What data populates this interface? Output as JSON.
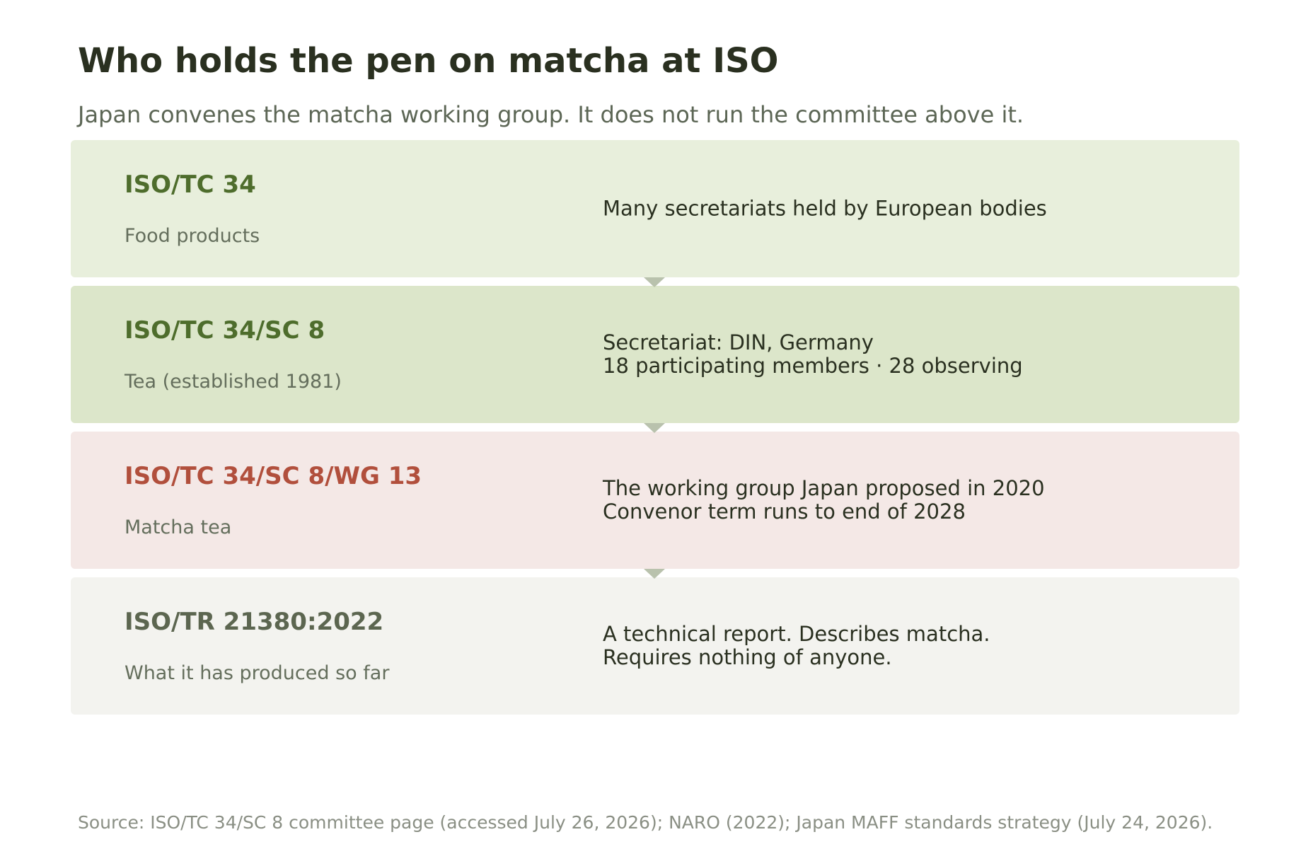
{
  "title": "Who holds the pen on matcha at ISO",
  "subtitle": "Japan convenes the matcha working group. It does not run the committee above it.",
  "boxes": [
    {
      "name": "ISO/TC 34",
      "sub": "Food products",
      "lines": [
        "Many secretariats held by European bodies"
      ],
      "bg": "#e8efdc",
      "name_color": "#4e6d2c"
    },
    {
      "name": "ISO/TC 34/SC 8",
      "sub": "Tea (established 1981)",
      "lines": [
        "Secretariat: DIN, Germany",
        "18 participating members  ·  28 observing"
      ],
      "bg": "#dce6ca",
      "name_color": "#4e6d2c"
    },
    {
      "name": "ISO/TC 34/SC 8/WG 13",
      "sub": "Matcha tea",
      "lines": [
        "The working group Japan proposed in 2020",
        "Convenor term runs to end of 2028"
      ],
      "bg": "#f4e8e6",
      "name_color": "#b14f3c"
    },
    {
      "name": "ISO/TR 21380:2022",
      "sub": "What it has produced so far",
      "lines": [
        "A technical report. Describes matcha.",
        "Requires nothing of anyone."
      ],
      "bg": "#f3f3ef",
      "name_color": "#5c6650"
    }
  ],
  "source": "Source: ISO/TC 34/SC 8 committee page (accessed July 26, 2026); NARO (2022); Japan MAFF standards strategy (July 24, 2026)."
}
